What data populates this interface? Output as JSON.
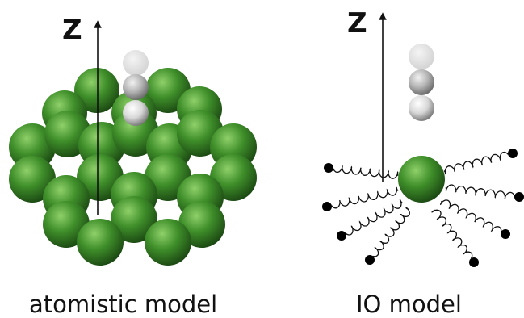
{
  "panels": {
    "left": {
      "axis_label": "Z",
      "caption": "atomistic model"
    },
    "right": {
      "axis_label": "Z",
      "caption": "IO model"
    }
  },
  "colors": {
    "sphere_green": "#3f8f2a",
    "sphere_green_dark": "#1f4f12",
    "sphere_grey": "#9a9a9a",
    "spring": "#111111"
  }
}
